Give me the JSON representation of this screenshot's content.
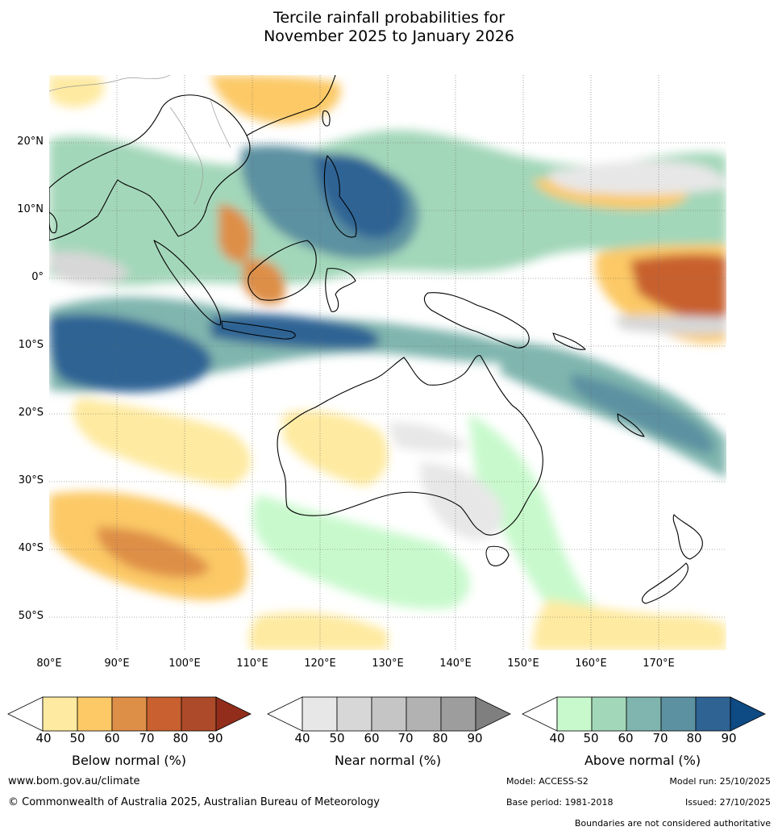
{
  "title": {
    "line1": "Tercile rainfall probabilities for",
    "line2": "November 2025 to January 2026"
  },
  "map": {
    "lat_labels": [
      "20°N",
      "10°N",
      "0°",
      "10°S",
      "20°S",
      "30°S",
      "40°S",
      "50°S"
    ],
    "lon_labels": [
      "80°E",
      "90°E",
      "100°E",
      "110°E",
      "120°E",
      "130°E",
      "140°E",
      "150°E",
      "160°E",
      "170°E"
    ],
    "ocean_color": "#ffffff",
    "coast_color": "#000000"
  },
  "legends": [
    {
      "title": "Below normal (%)",
      "ticks": [
        "40",
        "50",
        "60",
        "70",
        "80",
        "90"
      ],
      "colors": [
        "#ffffff",
        "#feeaa0",
        "#fcc966",
        "#de8f47",
        "#c8602f",
        "#ad4a29",
        "#922d1c"
      ]
    },
    {
      "title": "Near normal (%)",
      "ticks": [
        "40",
        "50",
        "60",
        "70",
        "80",
        "90"
      ],
      "colors": [
        "#ffffff",
        "#e7e7e7",
        "#d7d7d7",
        "#c5c5c5",
        "#b2b2b2",
        "#9d9d9d",
        "#7f7f7f"
      ]
    },
    {
      "title": "Above normal (%)",
      "ticks": [
        "40",
        "50",
        "60",
        "70",
        "80",
        "90"
      ],
      "colors": [
        "#ffffff",
        "#c8f9cc",
        "#a3d7b9",
        "#7fb5ae",
        "#5c91a1",
        "#2f6394",
        "#0e4a84"
      ]
    }
  ],
  "footer": {
    "website": "www.bom.gov.au/climate",
    "copyright": "© Commonwealth of Australia 2025, Australian Bureau of Meteorology",
    "model": "Model: ACCESS-S2",
    "model_run": "Model run: 25/10/2025",
    "base_period": "Base period: 1981-2018",
    "issued": "Issued: 27/10/2025",
    "disclaimer": "Boundaries are not considered authoritative"
  }
}
